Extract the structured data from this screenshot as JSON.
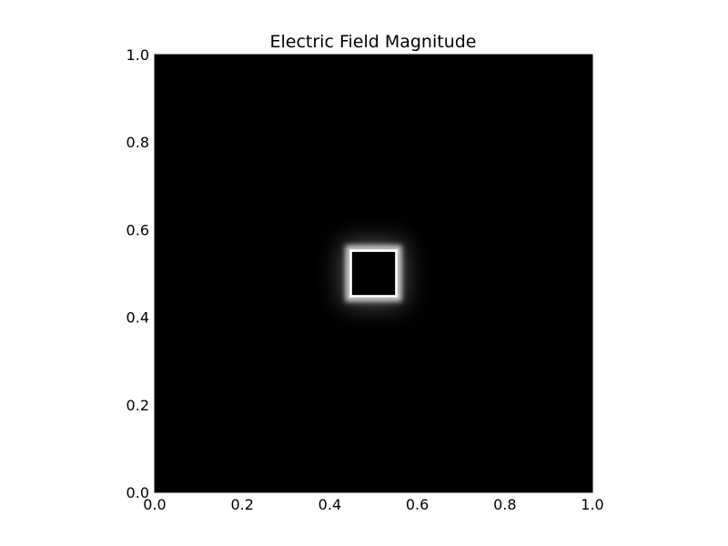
{
  "chart_data": {
    "type": "heatmap",
    "title": "Electric Field Magnitude",
    "xlabel": "",
    "ylabel": "",
    "xlim": [
      0.0,
      1.0
    ],
    "ylim": [
      0.0,
      1.0
    ],
    "x_ticks": [
      0.0,
      0.2,
      0.4,
      0.6,
      0.8,
      1.0
    ],
    "y_ticks": [
      0.0,
      0.2,
      0.4,
      0.6,
      0.8,
      1.0
    ],
    "x_tick_labels": [
      "0.0",
      "0.2",
      "0.4",
      "0.6",
      "0.8",
      "1.0"
    ],
    "y_tick_labels": [
      "0.0",
      "0.2",
      "0.4",
      "0.6",
      "0.8",
      "1.0"
    ],
    "colormap": "gray",
    "background_value": 0.0,
    "conductor": {
      "shape": "square",
      "x_range": [
        0.45,
        0.55
      ],
      "y_range": [
        0.45,
        0.55
      ],
      "field_value": 0.0
    },
    "field_peak_value": 1.0,
    "field_decay_extent": 0.2,
    "grid": false,
    "legend": "none"
  },
  "colors": {
    "background": "#000000",
    "peak": "#ffffff",
    "axes": "#000000"
  }
}
